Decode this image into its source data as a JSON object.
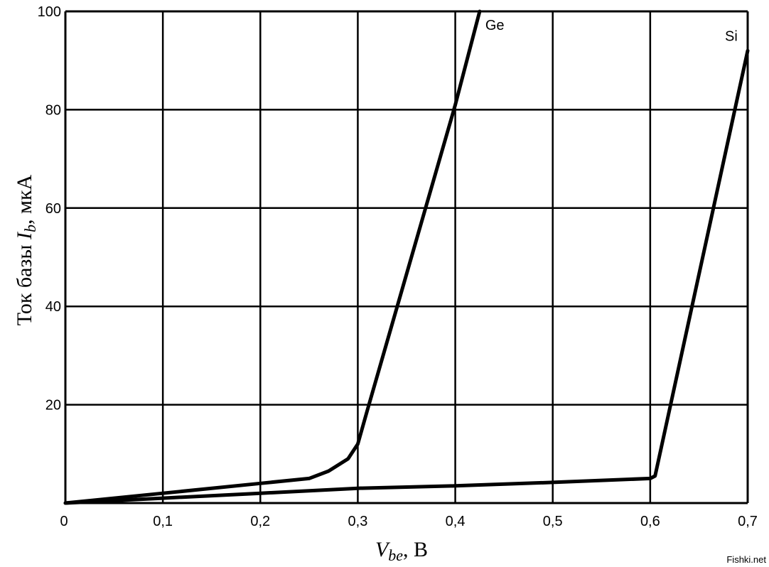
{
  "chart_data": {
    "type": "line",
    "title": "",
    "xlabel": "Vbe, В",
    "ylabel": "Ток базы Ib, мкА",
    "xlim": [
      0,
      0.7
    ],
    "ylim": [
      0,
      100
    ],
    "x_ticks": [
      "0",
      "0,1",
      "0,2",
      "0,3",
      "0,4",
      "0,5",
      "0,6",
      "0,7"
    ],
    "y_ticks": [
      "20",
      "40",
      "60",
      "80",
      "100"
    ],
    "grid": true,
    "series": [
      {
        "name": "Ge",
        "x": [
          0,
          0.1,
          0.2,
          0.25,
          0.27,
          0.29,
          0.3,
          0.31,
          0.4,
          0.425
        ],
        "y": [
          0,
          2,
          4,
          5,
          6.5,
          9,
          12,
          19,
          81,
          100
        ]
      },
      {
        "name": "Si",
        "x": [
          0,
          0.1,
          0.2,
          0.3,
          0.4,
          0.5,
          0.6,
          0.605,
          0.7
        ],
        "y": [
          0,
          1,
          2,
          3,
          3.5,
          4.2,
          5,
          5.5,
          92
        ]
      }
    ]
  },
  "labels": {
    "ylabel_main": "Ток базы ",
    "ylabel_var": "I",
    "ylabel_sub": "b",
    "ylabel_unit": ", мкА",
    "xlabel_var": "V",
    "xlabel_sub": "be",
    "xlabel_unit": ", В"
  },
  "watermark": "Fishki.net"
}
